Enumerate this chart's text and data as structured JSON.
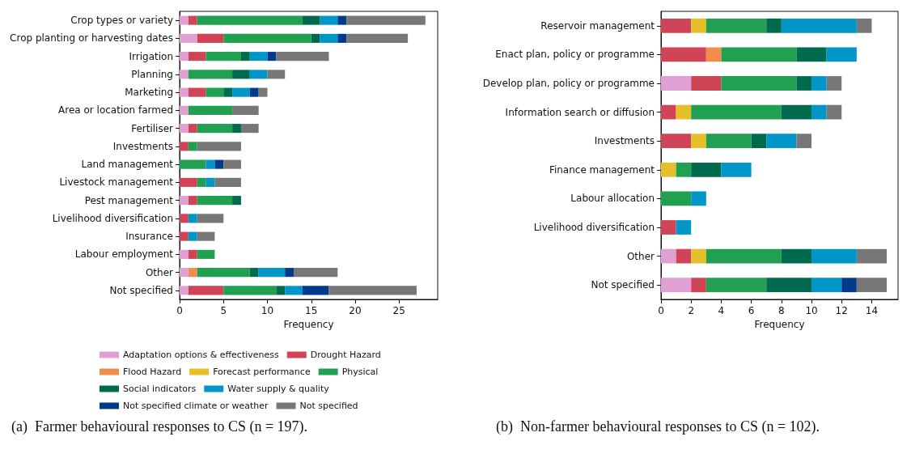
{
  "chart_data": [
    {
      "type": "bar",
      "orientation": "horizontal",
      "stacked": true,
      "xlabel": "Frequency",
      "xlim": [
        0,
        29.4
      ],
      "xticks": [
        0,
        5,
        10,
        15,
        20,
        25
      ],
      "legend": "bottom",
      "annotations": [
        "(a)  Farmer behavioural responses to CS (n = 197)."
      ],
      "categories": [
        "Crop types or variety",
        "Crop planting or harvesting dates",
        "Irrigation",
        "Planning",
        "Marketing",
        "Area or location farmed",
        "Fertiliser",
        "Investments",
        "Land management",
        "Livestock management",
        "Pest management",
        "Livelihood diversification",
        "Insurance",
        "Labour employment",
        "Other",
        "Not specified"
      ],
      "series": [
        {
          "name": "Adaptation options & effectiveness",
          "color": "#e0a0d4",
          "values": [
            1,
            2,
            1,
            1,
            1,
            1,
            1,
            0,
            0,
            0,
            1,
            0,
            0,
            1,
            1,
            1
          ]
        },
        {
          "name": "Drought Hazard",
          "color": "#d04458",
          "values": [
            1,
            3,
            2,
            0,
            2,
            0,
            1,
            1,
            0,
            2,
            1,
            1,
            1,
            1,
            0,
            4
          ]
        },
        {
          "name": "Flood Hazard",
          "color": "#f28c4c",
          "values": [
            0,
            0,
            0,
            0,
            0,
            0,
            0,
            0,
            0,
            0,
            0,
            0,
            0,
            0,
            1,
            0
          ]
        },
        {
          "name": "Forecast performance",
          "color": "#e6c02a",
          "values": [
            0,
            0,
            0,
            0,
            0,
            0,
            0,
            0,
            0,
            0,
            0,
            0,
            0,
            0,
            0,
            0
          ]
        },
        {
          "name": "Physical",
          "color": "#20a050",
          "values": [
            12,
            10,
            4,
            5,
            2,
            5,
            4,
            1,
            3,
            1,
            4,
            0,
            0,
            2,
            6,
            6
          ]
        },
        {
          "name": "Social indicators",
          "color": "#006a4e",
          "values": [
            2,
            1,
            1,
            2,
            1,
            0,
            1,
            0,
            0,
            0,
            1,
            0,
            0,
            0,
            1,
            1
          ]
        },
        {
          "name": "Water supply & quality",
          "color": "#0096c8",
          "values": [
            2,
            2,
            2,
            2,
            2,
            0,
            0,
            0,
            1,
            1,
            0,
            1,
            1,
            0,
            3,
            2
          ]
        },
        {
          "name": "Not specified climate or weather",
          "color": "#003a8c",
          "values": [
            1,
            1,
            1,
            0,
            1,
            0,
            0,
            0,
            1,
            0,
            0,
            0,
            0,
            0,
            1,
            3
          ]
        },
        {
          "name": "Not specified",
          "color": "#777777",
          "values": [
            9,
            7,
            6,
            2,
            1,
            3,
            2,
            5,
            2,
            3,
            0,
            3,
            2,
            0,
            5,
            10
          ]
        }
      ]
    },
    {
      "type": "bar",
      "orientation": "horizontal",
      "stacked": true,
      "xlabel": "Frequency",
      "xlim": [
        0,
        15.75
      ],
      "xticks": [
        0,
        2,
        4,
        6,
        8,
        10,
        12,
        14
      ],
      "annotations": [
        "(b)  Non-farmer behavioural responses to CS (n = 102)."
      ],
      "categories": [
        "Reservoir management",
        "Enact plan, policy or programme",
        "Develop plan, policy or programme",
        "Information search or diffusion",
        "Investments",
        "Finance management",
        "Labour allocation",
        "Livelihood diversification",
        "Other",
        "Not specified"
      ],
      "series": [
        {
          "color": "#e0a0d4",
          "values": [
            0,
            0,
            2,
            0,
            0,
            0,
            0,
            0,
            1,
            2
          ]
        },
        {
          "color": "#d04458",
          "values": [
            2,
            3,
            2,
            1,
            2,
            0,
            0,
            1,
            1,
            1
          ]
        },
        {
          "color": "#f28c4c",
          "values": [
            0,
            1,
            0,
            0,
            0,
            0,
            0,
            0,
            0,
            0
          ]
        },
        {
          "color": "#e6c02a",
          "values": [
            1,
            0,
            0,
            1,
            1,
            1,
            0,
            0,
            1,
            0
          ]
        },
        {
          "color": "#20a050",
          "values": [
            4,
            5,
            5,
            6,
            3,
            1,
            2,
            0,
            5,
            4
          ]
        },
        {
          "color": "#006a4e",
          "values": [
            1,
            2,
            1,
            2,
            1,
            2,
            0,
            0,
            2,
            3
          ]
        },
        {
          "color": "#0096c8",
          "values": [
            5,
            2,
            1,
            1,
            2,
            2,
            1,
            1,
            3,
            2
          ]
        },
        {
          "color": "#003a8c",
          "values": [
            0,
            0,
            0,
            0,
            0,
            0,
            0,
            0,
            0,
            1
          ]
        },
        {
          "color": "#777777",
          "values": [
            1,
            0,
            1,
            1,
            1,
            0,
            0,
            0,
            2,
            2
          ]
        }
      ]
    }
  ]
}
